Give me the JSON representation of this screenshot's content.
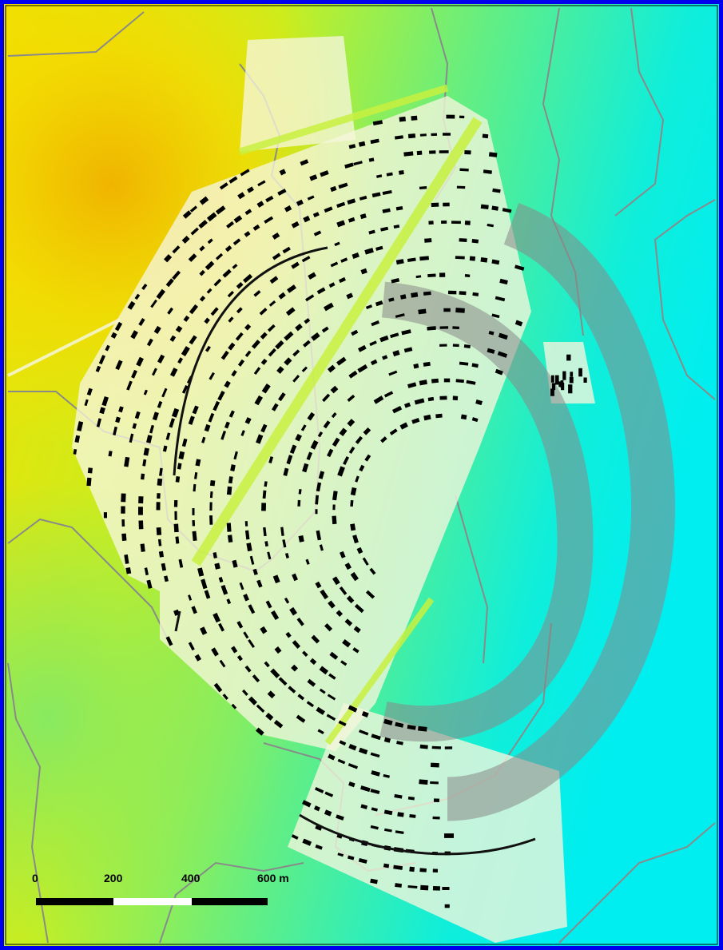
{
  "scale_bar": {
    "labels": [
      "0",
      "200",
      "400",
      "600 m"
    ]
  }
}
